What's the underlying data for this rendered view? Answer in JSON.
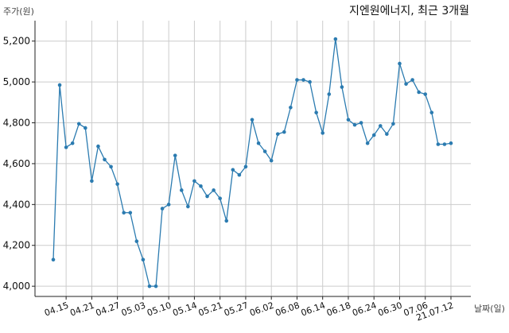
{
  "chart_data": {
    "type": "line",
    "title": "지엔원에너지, 최근 3개월",
    "ylabel": "주가(원)",
    "xlabel": "날짜(일)",
    "ylim": [
      3950,
      5300
    ],
    "yticks": [
      4000,
      4200,
      4400,
      4600,
      4800,
      5000,
      5200
    ],
    "ytick_labels": [
      "4,000",
      "4,200",
      "4,400",
      "4,600",
      "4,800",
      "5,000",
      "5,200"
    ],
    "xticks": [
      {
        "i": 2,
        "label": "04.15"
      },
      {
        "i": 6,
        "label": "04.21"
      },
      {
        "i": 10,
        "label": "04.27"
      },
      {
        "i": 14,
        "label": "05.03"
      },
      {
        "i": 18,
        "label": "05.10"
      },
      {
        "i": 22,
        "label": "05.14"
      },
      {
        "i": 26,
        "label": "05.21"
      },
      {
        "i": 30,
        "label": "05.27"
      },
      {
        "i": 34,
        "label": "06.02"
      },
      {
        "i": 38,
        "label": "06.08"
      },
      {
        "i": 42,
        "label": "06.14"
      },
      {
        "i": 46,
        "label": "06.18"
      },
      {
        "i": 50,
        "label": "06.24"
      },
      {
        "i": 54,
        "label": "06.30"
      },
      {
        "i": 58,
        "label": "07.06"
      },
      {
        "i": 62,
        "label": "21.07.12"
      }
    ],
    "grid": true,
    "color": "#2b7bb0",
    "values": [
      4130,
      4985,
      4680,
      4700,
      4795,
      4775,
      4515,
      4685,
      4620,
      4585,
      4500,
      4360,
      4360,
      4220,
      4130,
      4000,
      4000,
      4380,
      4400,
      4640,
      4470,
      4390,
      4515,
      4490,
      4440,
      4470,
      4430,
      4320,
      4570,
      4545,
      4585,
      4815,
      4700,
      4660,
      4615,
      4745,
      4755,
      4875,
      5010,
      5010,
      5000,
      4850,
      4750,
      4940,
      5210,
      4975,
      4815,
      4790,
      4800,
      4700,
      4740,
      4785,
      4745,
      4795,
      5090,
      4990,
      5010,
      4950,
      4940,
      4850,
      4695,
      4695,
      4700
    ]
  }
}
